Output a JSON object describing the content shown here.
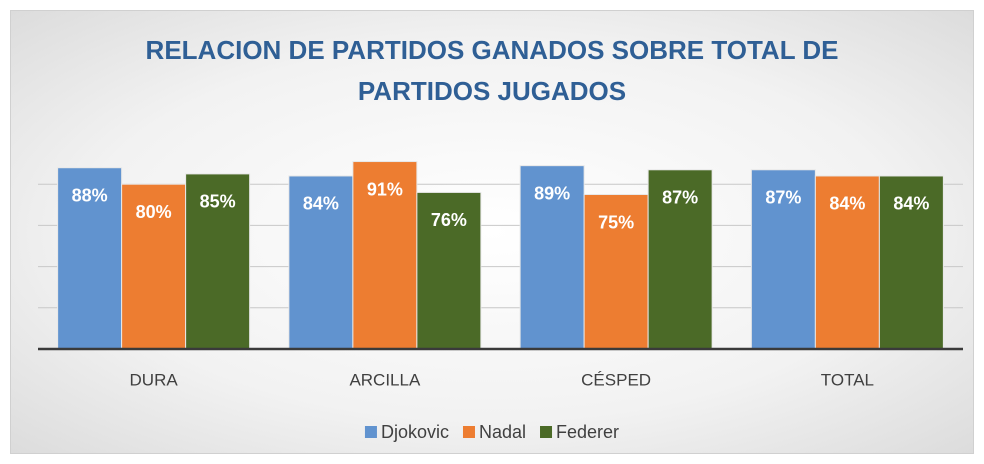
{
  "chart_data": {
    "type": "bar",
    "title": "RELACION DE PARTIDOS GANADOS SOBRE TOTAL DE PARTIDOS JUGADOS",
    "categories": [
      "DURA",
      "ARCILLA",
      "CÉSPED",
      "TOTAL"
    ],
    "series": [
      {
        "name": "Djokovic",
        "color": "#6193cf",
        "values": [
          88,
          84,
          89,
          87
        ],
        "value_labels": [
          "88%",
          "84%",
          "89%",
          "87%"
        ]
      },
      {
        "name": "Nadal",
        "color": "#ed7d31",
        "values": [
          80,
          91,
          75,
          84
        ],
        "value_labels": [
          "80%",
          "91%",
          "75%",
          "84%"
        ]
      },
      {
        "name": "Federer",
        "color": "#4b6a27",
        "values": [
          85,
          76,
          87,
          84
        ],
        "value_labels": [
          "85%",
          "76%",
          "87%",
          "84%"
        ]
      }
    ],
    "ylim": [
      0,
      100
    ],
    "yticks": [
      0,
      20,
      40,
      60,
      80
    ],
    "grid": true,
    "legend": "bottom"
  }
}
